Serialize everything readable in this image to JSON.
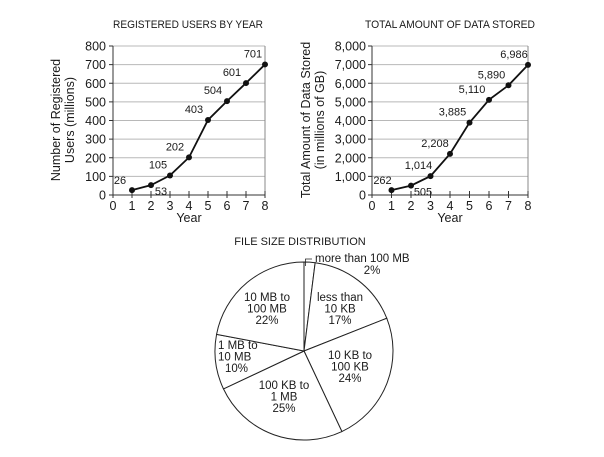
{
  "chart_data": [
    {
      "type": "line",
      "title": "REGISTERED USERS BY YEAR",
      "xlabel": "Year",
      "ylabel": [
        "Number of Registered",
        "Users (millions)"
      ],
      "x": [
        1,
        2,
        3,
        4,
        5,
        6,
        7,
        8
      ],
      "values": [
        26,
        53,
        105,
        202,
        403,
        504,
        601,
        701
      ],
      "data_labels": [
        "26",
        "53",
        "105",
        "202",
        "403",
        "504",
        "601",
        "701"
      ],
      "xlim": [
        0,
        8
      ],
      "ylim": [
        0,
        800
      ],
      "xticks": [
        "0",
        "1",
        "2",
        "3",
        "4",
        "5",
        "6",
        "7",
        "8"
      ],
      "yticks": [
        "0",
        "100",
        "200",
        "300",
        "400",
        "500",
        "600",
        "700",
        "800"
      ],
      "ytick_values": [
        0,
        100,
        200,
        300,
        400,
        500,
        600,
        700,
        800
      ],
      "grid": true
    },
    {
      "type": "line",
      "title": "TOTAL AMOUNT OF DATA STORED",
      "xlabel": "Year",
      "ylabel": [
        "Total Amount of Data Stored",
        "(in millions of GB)"
      ],
      "x": [
        1,
        2,
        3,
        4,
        5,
        6,
        7,
        8
      ],
      "values": [
        262,
        505,
        1014,
        2208,
        3885,
        5110,
        5890,
        6986
      ],
      "data_labels": [
        "262",
        "505",
        "1,014",
        "2,208",
        "3,885",
        "5,110",
        "5,890",
        "6,986"
      ],
      "xlim": [
        0,
        8
      ],
      "ylim": [
        0,
        8000
      ],
      "xticks": [
        "0",
        "1",
        "2",
        "3",
        "4",
        "5",
        "6",
        "7",
        "8"
      ],
      "yticks": [
        "0",
        "1,000",
        "2,000",
        "3,000",
        "4,000",
        "5,000",
        "6,000",
        "7,000",
        "8,000"
      ],
      "ytick_values": [
        0,
        1000,
        2000,
        3000,
        4000,
        5000,
        6000,
        7000,
        8000
      ],
      "grid": true
    },
    {
      "type": "pie",
      "title": "FILE SIZE DISTRIBUTION",
      "slices": [
        {
          "label": [
            "more than 100 MB"
          ],
          "pct_label": "2%",
          "value": 2
        },
        {
          "label": [
            "less than",
            "10 KB"
          ],
          "pct_label": "17%",
          "value": 17
        },
        {
          "label": [
            "10 KB to",
            "100 KB"
          ],
          "pct_label": "24%",
          "value": 24
        },
        {
          "label": [
            "100 KB to",
            "1 MB"
          ],
          "pct_label": "25%",
          "value": 25
        },
        {
          "label": [
            "1 MB to",
            "10 MB"
          ],
          "pct_label": "10%",
          "value": 10
        },
        {
          "label": [
            "10 MB to",
            "100 MB"
          ],
          "pct_label": "22%",
          "value": 22
        }
      ]
    }
  ]
}
